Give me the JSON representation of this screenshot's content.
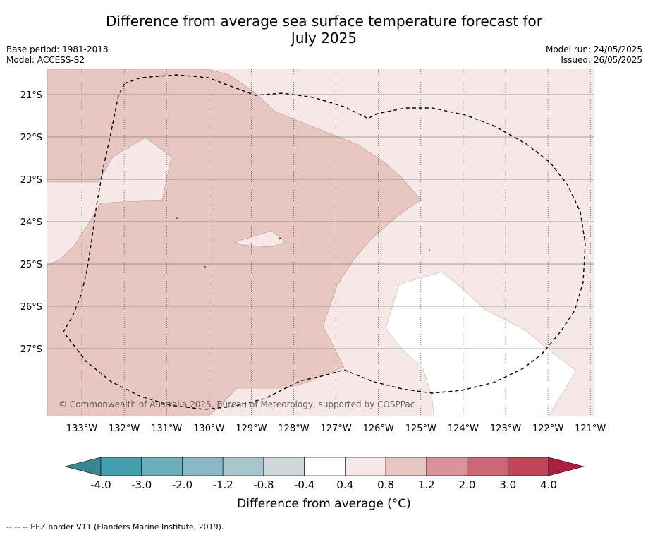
{
  "title_line1": "Difference from average sea surface temperature forecast for",
  "title_line2": "July 2025",
  "base_period": "Base period: 1981-2018",
  "model": "Model: ACCESS-S2",
  "model_run": "Model run: 24/05/2025",
  "issued": "Issued: 26/05/2025",
  "copyright": "© Commonwealth of Australia 2025, Bureau of Meteorology, supported by COSPPac",
  "map": {
    "lon_labels": [
      "133°W",
      "132°W",
      "131°W",
      "130°W",
      "129°W",
      "128°W",
      "127°W",
      "126°W",
      "125°W",
      "124°W",
      "123°W",
      "122°W",
      "121°W"
    ],
    "lat_labels": [
      "21°S",
      "22°S",
      "23°S",
      "24°S",
      "25°S",
      "26°S",
      "27°S"
    ],
    "layers": [
      "sst-anomaly-fill",
      "eez-border",
      "graticule"
    ]
  },
  "colorbar": {
    "title": "Difference from average (°C)",
    "ticks": [
      "-4.0",
      "-3.0",
      "-2.0",
      "-1.2",
      "-0.8",
      "-0.4",
      "0.4",
      "0.8",
      "1.2",
      "2.0",
      "3.0",
      "4.0"
    ],
    "colors": [
      "#459faf",
      "#6caebb",
      "#8ab8c3",
      "#a7c7cc",
      "#cfd8da",
      "#ffffff",
      "#f5e8e6",
      "#e8c7c2",
      "#d9919a",
      "#cb6876",
      "#bf4656"
    ],
    "under_color": "#3b8490",
    "over_color": "#ad1f3c"
  },
  "footnote": "--  --  -- EEZ border V11 (Flanders Marine Institute, 2019)."
}
